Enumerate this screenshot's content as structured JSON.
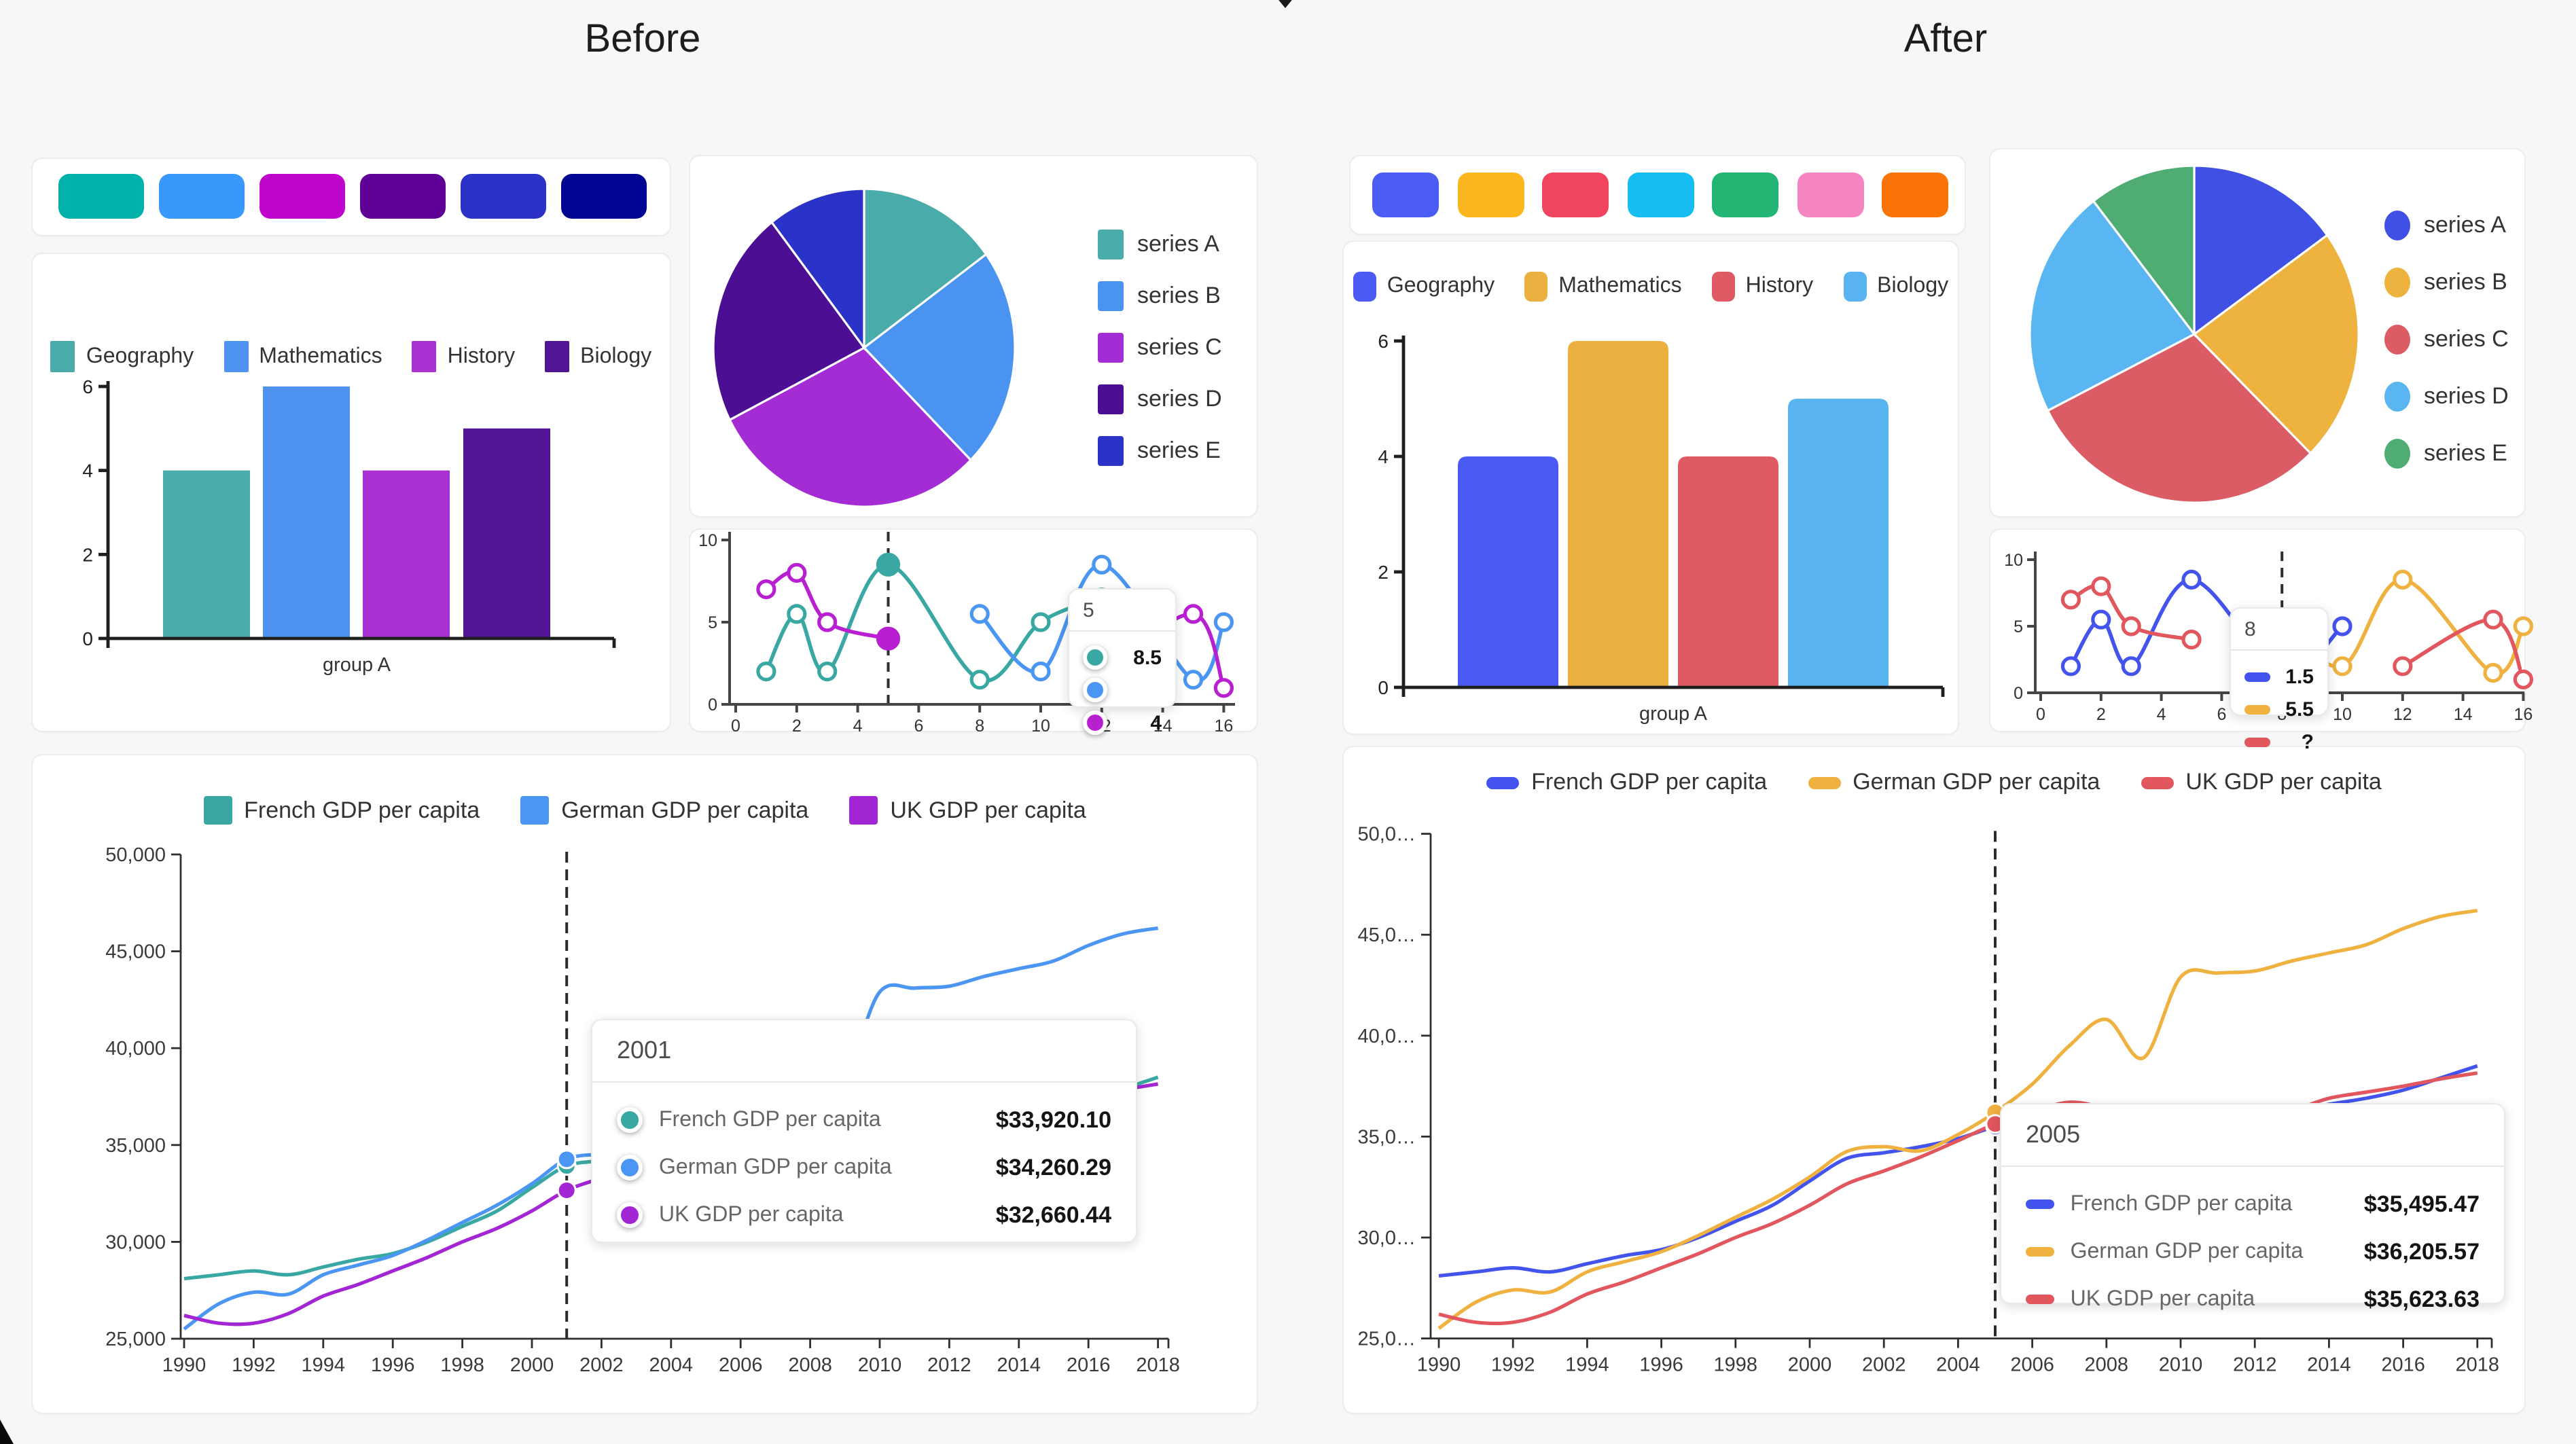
{
  "page": {
    "before_title": "Before",
    "after_title": "After"
  },
  "palettes": {
    "before": [
      "#00b2a9",
      "#3898fc",
      "#bf06cc",
      "#5e0096",
      "#2c31c8",
      "#000591"
    ],
    "after": [
      "#4a5cf2",
      "#fcb620",
      "#f1445e",
      "#16bdf0",
      "#22b573",
      "#f484c2",
      "#f97307"
    ]
  },
  "chart_data": [
    {
      "id": "before-bar",
      "type": "bar",
      "categories": [
        "group A"
      ],
      "ylim": [
        0,
        6
      ],
      "yticks": [
        0,
        2,
        4,
        6
      ],
      "series": [
        {
          "name": "Geography",
          "values": [
            4
          ],
          "color": "#4aabab"
        },
        {
          "name": "Mathematics",
          "values": [
            6
          ],
          "color": "#4f93f0"
        },
        {
          "name": "History",
          "values": [
            4
          ],
          "color": "#aa30d2"
        },
        {
          "name": "Biology",
          "values": [
            5
          ],
          "color": "#521596"
        }
      ]
    },
    {
      "id": "after-bar",
      "type": "bar",
      "categories": [
        "group A"
      ],
      "ylim": [
        0,
        6
      ],
      "yticks": [
        0,
        2,
        4,
        6
      ],
      "series": [
        {
          "name": "Geography",
          "values": [
            4
          ],
          "color": "#4b5af2"
        },
        {
          "name": "Mathematics",
          "values": [
            6
          ],
          "color": "#ecb041"
        },
        {
          "name": "History",
          "values": [
            4
          ],
          "color": "#df5a64"
        },
        {
          "name": "Biology",
          "values": [
            5
          ],
          "color": "#58b3f0"
        }
      ]
    },
    {
      "id": "before-pie",
      "type": "pie",
      "labels": [
        "series A",
        "series B",
        "series C",
        "series D",
        "series E"
      ],
      "values": [
        3,
        4.5,
        6,
        4.4,
        2.1
      ],
      "colors": [
        "#4aabab",
        "#4b93f1",
        "#a42cd5",
        "#4c0e92",
        "#2a32c8"
      ]
    },
    {
      "id": "after-pie",
      "type": "pie",
      "labels": [
        "series A",
        "series B",
        "series C",
        "series D",
        "series E"
      ],
      "values": [
        3,
        4.5,
        6,
        4.4,
        2.1
      ],
      "colors": [
        "#4050e5",
        "#eeb23f",
        "#dc5c66",
        "#5ab6f2",
        "#4fad73"
      ]
    },
    {
      "id": "before-mini",
      "type": "line",
      "xlim": [
        0,
        16.4
      ],
      "ylim": [
        0,
        10
      ],
      "yticks": [
        0,
        5,
        10
      ],
      "xticks": [
        0,
        2,
        4,
        6,
        8,
        10,
        12,
        14,
        16
      ],
      "series": [
        {
          "color": "#3aa8a2",
          "runs": [
            [
              [
                1,
                2
              ],
              [
                2,
                5.5
              ],
              [
                3,
                2
              ],
              [
                5,
                8.5
              ],
              [
                8,
                1.5
              ],
              [
                10,
                5
              ],
              [
                12,
                6.5
              ]
            ]
          ]
        },
        {
          "color": "#4b96f2",
          "runs": [
            [
              [
                8,
                5.5
              ],
              [
                10,
                2
              ],
              [
                12,
                8.5
              ],
              [
                15,
                1.5
              ],
              [
                16,
                5
              ]
            ]
          ]
        },
        {
          "color": "#b81fd0",
          "runs": [
            [
              [
                1,
                7
              ],
              [
                2,
                8
              ],
              [
                3,
                5
              ],
              [
                5,
                4
              ]
            ],
            [
              [
                12,
                2
              ],
              [
                15,
                5.5
              ],
              [
                16,
                1
              ]
            ]
          ]
        }
      ],
      "highlight_x": 5,
      "tooltip": {
        "header": "5",
        "marker": "circle",
        "rows": [
          {
            "color": "#3aa8a2",
            "value": "8.5"
          },
          {
            "color": "#4b96f2",
            "value": ""
          },
          {
            "color": "#b81fd0",
            "value": "4"
          }
        ]
      }
    },
    {
      "id": "after-mini",
      "type": "line",
      "xlim": [
        0,
        16.4
      ],
      "ylim": [
        0,
        10
      ],
      "yticks": [
        0,
        5,
        10
      ],
      "xticks": [
        0,
        2,
        4,
        6,
        8,
        10,
        12,
        14,
        16
      ],
      "series": [
        {
          "color": "#4353ee",
          "runs": [
            [
              [
                1,
                2
              ],
              [
                2,
                5.5
              ],
              [
                3,
                2
              ],
              [
                5,
                8.5
              ],
              [
                8,
                1.5
              ],
              [
                10,
                5
              ]
            ]
          ]
        },
        {
          "color": "#efb140",
          "runs": [
            [
              [
                8,
                5.5
              ],
              [
                10,
                2
              ],
              [
                12,
                8.5
              ],
              [
                15,
                1.5
              ],
              [
                16,
                5
              ]
            ]
          ]
        },
        {
          "color": "#e2565e",
          "runs": [
            [
              [
                1,
                7
              ],
              [
                2,
                8
              ],
              [
                3,
                5
              ],
              [
                5,
                4
              ]
            ],
            [
              [
                12,
                2
              ],
              [
                15,
                5.5
              ],
              [
                16,
                1
              ]
            ]
          ]
        }
      ],
      "highlight_x": null,
      "tooltip": {
        "header": "8",
        "marker": "pill",
        "rows": [
          {
            "color": "#4353ee",
            "value": "1.5"
          },
          {
            "color": "#efb140",
            "value": "5.5"
          },
          {
            "color": "#e2565e",
            "value": "?"
          }
        ]
      }
    },
    {
      "id": "before-gdp",
      "type": "line",
      "years": [
        1990,
        1991,
        1992,
        1993,
        1994,
        1995,
        1996,
        1997,
        1998,
        1999,
        2000,
        2001,
        2002,
        2003,
        2004,
        2005,
        2006,
        2007,
        2008,
        2009,
        2010,
        2011,
        2012,
        2013,
        2014,
        2015,
        2016,
        2017,
        2018
      ],
      "ylim": [
        25000,
        50000
      ],
      "yticks": [
        25000,
        30000,
        35000,
        40000,
        45000,
        50000
      ],
      "ylabels": [
        "25,000",
        "30,000",
        "35,000",
        "40,000",
        "45,000",
        "50,000"
      ],
      "marker": "square",
      "hover_year": 2001,
      "series": [
        {
          "name": "French GDP per capita",
          "color": "#3aa8a2",
          "values": [
            28100,
            28300,
            28500,
            28300,
            28700,
            29100,
            29400,
            30000,
            30800,
            31600,
            32800,
            33920.1,
            34200,
            34500,
            34900,
            35495.47,
            35900,
            36300,
            36200,
            35300,
            35700,
            36000,
            36100,
            36300,
            36600,
            36900,
            37300,
            37900,
            38500
          ]
        },
        {
          "name": "German GDP per capita",
          "color": "#4b96f2",
          "values": [
            25500,
            26800,
            27400,
            27300,
            28300,
            28800,
            29300,
            30100,
            31000,
            31900,
            33000,
            34260.29,
            34500,
            34300,
            35100,
            36205.57,
            37600,
            39500,
            40800,
            38900,
            42900,
            43100,
            43200,
            43700,
            44100,
            44500,
            45300,
            45900,
            46200
          ]
        },
        {
          "name": "UK GDP per capita",
          "color": "#a226d3",
          "values": [
            26200,
            25800,
            25800,
            26300,
            27200,
            27800,
            28500,
            29200,
            30000,
            30700,
            31600,
            32660.44,
            33300,
            34000,
            34800,
            35623.63,
            36200,
            36700,
            36300,
            35000,
            35400,
            35700,
            36000,
            36300,
            36900,
            37200,
            37500,
            37850,
            38150
          ]
        }
      ],
      "tooltip": {
        "header": "2001",
        "marker": "circle",
        "rows": [
          {
            "label": "French GDP per capita",
            "value": "$33,920.10",
            "color": "#3aa8a2"
          },
          {
            "label": "German GDP per capita",
            "value": "$34,260.29",
            "color": "#4b96f2"
          },
          {
            "label": "UK GDP per capita",
            "value": "$32,660.44",
            "color": "#a226d3"
          }
        ]
      }
    },
    {
      "id": "after-gdp",
      "type": "line",
      "years": [
        1990,
        1991,
        1992,
        1993,
        1994,
        1995,
        1996,
        1997,
        1998,
        1999,
        2000,
        2001,
        2002,
        2003,
        2004,
        2005,
        2006,
        2007,
        2008,
        2009,
        2010,
        2011,
        2012,
        2013,
        2014,
        2015,
        2016,
        2017,
        2018
      ],
      "ylim": [
        25000,
        50000
      ],
      "yticks": [
        25000,
        30000,
        35000,
        40000,
        45000,
        50000
      ],
      "ylabels": [
        "25,0…",
        "30,0…",
        "35,0…",
        "40,0…",
        "45,0…",
        "50,0…"
      ],
      "marker": "pill",
      "hover_year": 2005,
      "series": [
        {
          "name": "French GDP per capita",
          "color": "#4353ee",
          "values": [
            28100,
            28300,
            28500,
            28300,
            28700,
            29100,
            29400,
            30000,
            30800,
            31600,
            32800,
            33920.1,
            34200,
            34500,
            34900,
            35495.47,
            35900,
            36300,
            36200,
            35300,
            35700,
            36000,
            36100,
            36300,
            36600,
            36900,
            37300,
            37900,
            38500
          ]
        },
        {
          "name": "German GDP per capita",
          "color": "#efb140",
          "values": [
            25500,
            26800,
            27400,
            27300,
            28300,
            28800,
            29300,
            30100,
            31000,
            31900,
            33000,
            34260.29,
            34500,
            34300,
            35100,
            36205.57,
            37600,
            39500,
            40800,
            38900,
            42900,
            43100,
            43200,
            43700,
            44100,
            44500,
            45300,
            45900,
            46200
          ]
        },
        {
          "name": "UK GDP per capita",
          "color": "#e2565e",
          "values": [
            26200,
            25800,
            25800,
            26300,
            27200,
            27800,
            28500,
            29200,
            30000,
            30700,
            31600,
            32660.44,
            33300,
            34000,
            34800,
            35623.63,
            36200,
            36700,
            36300,
            35000,
            35400,
            35700,
            36000,
            36300,
            36900,
            37200,
            37500,
            37850,
            38150
          ]
        }
      ],
      "tooltip": {
        "header": "2005",
        "marker": "pill",
        "rows": [
          {
            "label": "French GDP per capita",
            "value": "$35,495.47",
            "color": "#4353ee"
          },
          {
            "label": "German GDP per capita",
            "value": "$36,205.57",
            "color": "#efb140"
          },
          {
            "label": "UK GDP per capita",
            "value": "$35,623.63",
            "color": "#e2565e"
          }
        ]
      }
    }
  ]
}
